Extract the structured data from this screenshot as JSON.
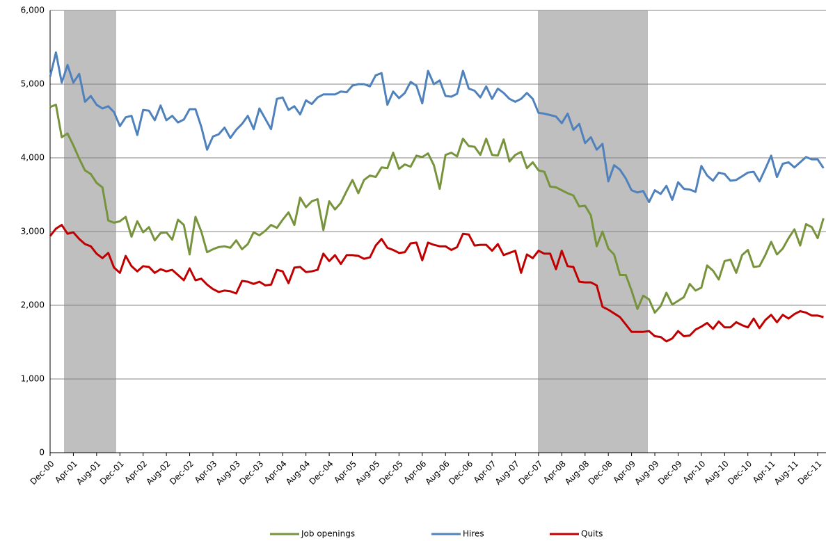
{
  "chart_data": {
    "type": "line",
    "categories": [
      "Dec-00",
      null,
      null,
      null,
      "Apr-01",
      null,
      null,
      null,
      "Aug-01",
      null,
      null,
      null,
      "Dec-01",
      null,
      null,
      null,
      "Apr-02",
      null,
      null,
      null,
      "Aug-02",
      null,
      null,
      null,
      "Dec-02",
      null,
      null,
      null,
      "Apr-03",
      null,
      null,
      null,
      "Aug-03",
      null,
      null,
      null,
      "Dec-03",
      null,
      null,
      null,
      "Apr-04",
      null,
      null,
      null,
      "Aug-04",
      null,
      null,
      null,
      "Dec-04",
      null,
      null,
      null,
      "Apr-05",
      null,
      null,
      null,
      "Aug-05",
      null,
      null,
      null,
      "Dec-05",
      null,
      null,
      null,
      "Apr-06",
      null,
      null,
      null,
      "Aug-06",
      null,
      null,
      null,
      "Dec-06",
      null,
      null,
      null,
      "Apr-07",
      null,
      null,
      null,
      "Aug-07",
      null,
      null,
      null,
      "Dec-07",
      null,
      null,
      null,
      "Apr-08",
      null,
      null,
      null,
      "Aug-08",
      null,
      null,
      null,
      "Dec-08",
      null,
      null,
      null,
      "Apr-09",
      null,
      null,
      null,
      "Aug-09",
      null,
      null,
      null,
      "Dec-09",
      null,
      null,
      null,
      "Apr-10",
      null,
      null,
      null,
      "Aug-10",
      null,
      null,
      null,
      "Dec-10",
      null,
      null,
      null,
      "Apr-11",
      null,
      null,
      null,
      "Aug-11",
      null,
      null,
      null,
      "Dec-11",
      null
    ],
    "series": [
      {
        "name": "Job openings",
        "color": "#77933c",
        "values": [
          4690,
          4720,
          4280,
          4330,
          4170,
          3990,
          3830,
          3780,
          3660,
          3600,
          3150,
          3120,
          3140,
          3200,
          2930,
          3140,
          2990,
          3060,
          2880,
          2980,
          2990,
          2890,
          3160,
          3090,
          2690,
          3200,
          3000,
          2720,
          2760,
          2790,
          2800,
          2780,
          2880,
          2760,
          2830,
          2990,
          2950,
          3010,
          3090,
          3050,
          3160,
          3260,
          3090,
          3460,
          3330,
          3410,
          3440,
          3020,
          3410,
          3300,
          3390,
          3550,
          3700,
          3520,
          3700,
          3760,
          3740,
          3870,
          3860,
          4070,
          3850,
          3910,
          3880,
          4030,
          4010,
          4060,
          3900,
          3580,
          4040,
          4070,
          4020,
          4260,
          4160,
          4150,
          4040,
          4260,
          4040,
          4030,
          4250,
          3950,
          4040,
          4080,
          3860,
          3940,
          3830,
          3810,
          3610,
          3600,
          3560,
          3520,
          3490,
          3340,
          3350,
          3220,
          2800,
          3000,
          2770,
          2690,
          2410,
          2410,
          2200,
          1950,
          2130,
          2080,
          1900,
          1990,
          2170,
          2010,
          2060,
          2110,
          2290,
          2200,
          2240,
          2540,
          2470,
          2350,
          2600,
          2620,
          2440,
          2680,
          2750,
          2520,
          2530,
          2680,
          2860,
          2690,
          2770,
          2910,
          3030,
          2810,
          3100,
          3060,
          2910,
          3180
        ]
      },
      {
        "name": "Hires",
        "color": "#4f81bd",
        "values": [
          5100,
          5430,
          5020,
          5260,
          5020,
          5140,
          4760,
          4840,
          4720,
          4670,
          4700,
          4620,
          4430,
          4550,
          4570,
          4310,
          4650,
          4640,
          4510,
          4710,
          4510,
          4570,
          4480,
          4520,
          4660,
          4660,
          4420,
          4110,
          4290,
          4320,
          4410,
          4270,
          4380,
          4460,
          4570,
          4390,
          4670,
          4530,
          4390,
          4800,
          4820,
          4650,
          4700,
          4590,
          4780,
          4730,
          4820,
          4860,
          4860,
          4860,
          4900,
          4890,
          4980,
          5000,
          5000,
          4970,
          5120,
          5150,
          4720,
          4900,
          4810,
          4880,
          5030,
          4980,
          4740,
          5180,
          5000,
          5050,
          4840,
          4830,
          4870,
          5180,
          4940,
          4910,
          4820,
          4970,
          4800,
          4940,
          4880,
          4800,
          4760,
          4800,
          4880,
          4800,
          4610,
          4600,
          4580,
          4560,
          4470,
          4600,
          4380,
          4460,
          4200,
          4280,
          4110,
          4190,
          3680,
          3900,
          3840,
          3720,
          3560,
          3530,
          3550,
          3400,
          3560,
          3510,
          3620,
          3430,
          3670,
          3580,
          3570,
          3540,
          3890,
          3760,
          3690,
          3800,
          3780,
          3690,
          3700,
          3750,
          3800,
          3810,
          3680,
          3850,
          4030,
          3740,
          3920,
          3940,
          3870,
          3940,
          4010,
          3980,
          3980,
          3860
        ]
      },
      {
        "name": "Quits",
        "color": "#c00000",
        "values": [
          2940,
          3040,
          3090,
          2970,
          2990,
          2900,
          2830,
          2800,
          2700,
          2640,
          2710,
          2510,
          2440,
          2670,
          2530,
          2460,
          2530,
          2520,
          2440,
          2490,
          2460,
          2480,
          2410,
          2340,
          2500,
          2340,
          2360,
          2280,
          2220,
          2180,
          2200,
          2190,
          2160,
          2330,
          2320,
          2290,
          2320,
          2270,
          2280,
          2480,
          2460,
          2300,
          2510,
          2520,
          2450,
          2460,
          2480,
          2700,
          2600,
          2680,
          2560,
          2680,
          2680,
          2670,
          2630,
          2650,
          2810,
          2900,
          2780,
          2750,
          2710,
          2720,
          2840,
          2850,
          2610,
          2850,
          2820,
          2800,
          2800,
          2750,
          2790,
          2970,
          2960,
          2810,
          2820,
          2820,
          2740,
          2830,
          2680,
          2710,
          2740,
          2440,
          2690,
          2640,
          2740,
          2700,
          2700,
          2490,
          2740,
          2530,
          2520,
          2320,
          2310,
          2310,
          2270,
          1980,
          1940,
          1890,
          1840,
          1740,
          1640,
          1640,
          1640,
          1650,
          1580,
          1570,
          1510,
          1550,
          1650,
          1580,
          1590,
          1670,
          1710,
          1760,
          1680,
          1780,
          1700,
          1700,
          1770,
          1730,
          1700,
          1820,
          1690,
          1800,
          1870,
          1770,
          1870,
          1820,
          1880,
          1920,
          1900,
          1860,
          1860,
          1840
        ]
      }
    ],
    "ylim": [
      0,
      6000
    ],
    "yticks": [
      0,
      {
        "value": 1000,
        "label": "1,000"
      },
      {
        "value": 2000,
        "label": "2,000"
      },
      {
        "value": 3000,
        "label": "3,000"
      },
      {
        "value": 4000,
        "label": "4,000"
      },
      {
        "value": 5000,
        "label": "5,000"
      },
      {
        "value": 6000,
        "label": "6,000"
      }
    ],
    "grid": true,
    "legend": "bottom"
  }
}
